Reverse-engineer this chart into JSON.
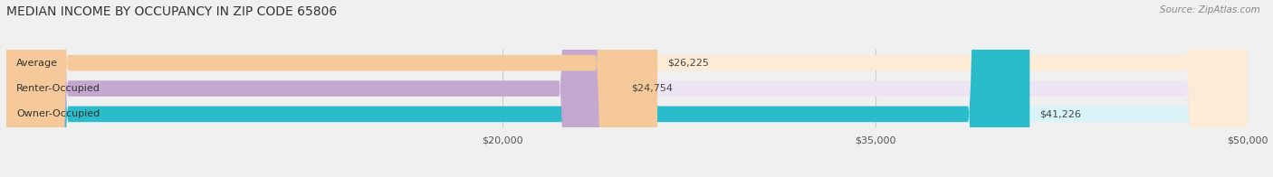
{
  "title": "MEDIAN INCOME BY OCCUPANCY IN ZIP CODE 65806",
  "source": "Source: ZipAtlas.com",
  "categories": [
    "Owner-Occupied",
    "Renter-Occupied",
    "Average"
  ],
  "values": [
    41226,
    24754,
    26225
  ],
  "bar_colors": [
    "#2bbccc",
    "#c4a8d0",
    "#f5c99a"
  ],
  "bar_bg_colors": [
    "#d8f4f7",
    "#ede5f3",
    "#fdebd6"
  ],
  "value_labels": [
    "$41,226",
    "$24,754",
    "$26,225"
  ],
  "xlim": [
    0,
    50000
  ],
  "xticks": [
    20000,
    35000,
    50000
  ],
  "xtick_labels": [
    "$20,000",
    "$35,000",
    "$50,000"
  ],
  "figsize": [
    14.06,
    1.96
  ],
  "dpi": 100,
  "background_color": "#f0f0f0",
  "title_fontsize": 10,
  "label_fontsize": 8,
  "value_fontsize": 8,
  "source_fontsize": 7.5
}
